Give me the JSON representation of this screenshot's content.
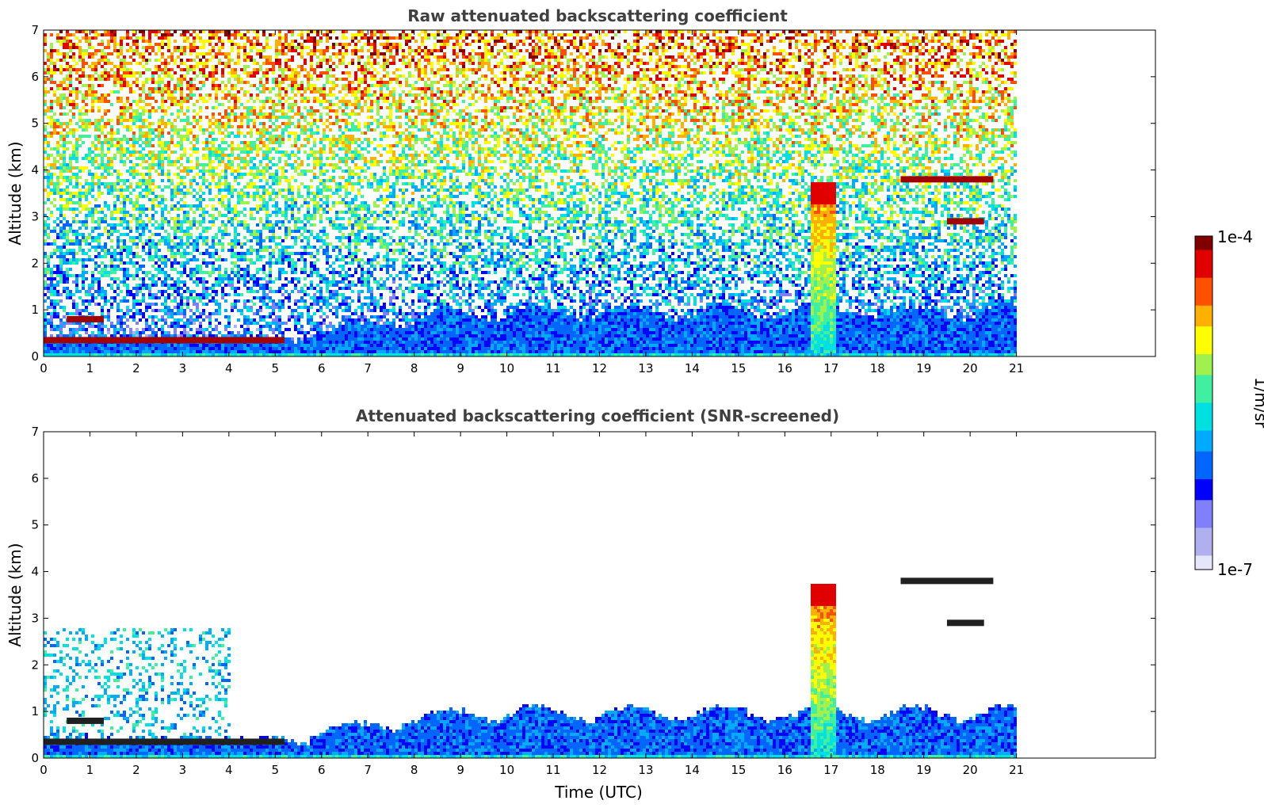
{
  "colormap": [
    "#e6e6fa",
    "#b0b0f0",
    "#8080ff",
    "#0000ff",
    "#0066ff",
    "#00aaff",
    "#00e0e0",
    "#40f0a0",
    "#a0f050",
    "#ffff00",
    "#ffb000",
    "#ff5000",
    "#e00000",
    "#800000"
  ],
  "colorbar": {
    "unit_label": "1/m/sr",
    "max_label": "1e-4",
    "min_label": "1e-7"
  },
  "chart_data": [
    {
      "type": "heatmap",
      "title": "Raw attenuated backscattering coefficient",
      "xlabel": "",
      "ylabel": "Altitude (km)",
      "xlim": [
        0,
        24
      ],
      "ylim": [
        0,
        7
      ],
      "x_ticks": [
        "0",
        "1",
        "2",
        "3",
        "4",
        "5",
        "6",
        "7",
        "8",
        "9",
        "10",
        "11",
        "12",
        "13",
        "14",
        "15",
        "16",
        "17",
        "18",
        "19",
        "20",
        "21"
      ],
      "y_ticks": [
        "0",
        "1",
        "2",
        "3",
        "4",
        "5",
        "6",
        "7"
      ],
      "data_end_hour": 21,
      "cbar_range": [
        "1e-7",
        "1e-4"
      ],
      "features": [
        {
          "kind": "cloud_layer",
          "t_start": 0.5,
          "t_end": 1.3,
          "alt_km": 0.8
        },
        {
          "kind": "cloud_layer",
          "t_start": 0.0,
          "t_end": 5.2,
          "alt_km": 0.35
        },
        {
          "kind": "convective_column",
          "t_start": 16.5,
          "t_end": 17.1,
          "alt_top_km": 3.8
        },
        {
          "kind": "elevated_cloud",
          "t_start": 18.5,
          "t_end": 20.5,
          "alt_km": 3.8
        },
        {
          "kind": "elevated_cloud",
          "t_start": 19.5,
          "t_end": 20.3,
          "alt_km": 2.9
        }
      ]
    },
    {
      "type": "heatmap",
      "title": "Attenuated backscattering coefficient (SNR-screened)",
      "xlabel": "Time (UTC)",
      "ylabel": "Altitude (km)",
      "xlim": [
        0,
        24
      ],
      "ylim": [
        0,
        7
      ],
      "x_ticks": [
        "0",
        "1",
        "2",
        "3",
        "4",
        "5",
        "6",
        "7",
        "8",
        "9",
        "10",
        "11",
        "12",
        "13",
        "14",
        "15",
        "16",
        "17",
        "18",
        "19",
        "20",
        "21"
      ],
      "y_ticks": [
        "0",
        "1",
        "2",
        "3",
        "4",
        "5",
        "6",
        "7"
      ],
      "data_end_hour": 21,
      "cbar_range": [
        "1e-7",
        "1e-4"
      ],
      "features": [
        {
          "kind": "cloud_layer",
          "t_start": 0.5,
          "t_end": 1.3,
          "alt_km": 0.8
        },
        {
          "kind": "cloud_layer",
          "t_start": 0.0,
          "t_end": 5.2,
          "alt_km": 0.35
        },
        {
          "kind": "convective_column",
          "t_start": 16.5,
          "t_end": 17.1,
          "alt_top_km": 3.8
        },
        {
          "kind": "elevated_cloud",
          "t_start": 18.5,
          "t_end": 20.5,
          "alt_km": 3.8
        },
        {
          "kind": "elevated_cloud",
          "t_start": 19.5,
          "t_end": 20.3,
          "alt_km": 2.9
        }
      ]
    }
  ]
}
